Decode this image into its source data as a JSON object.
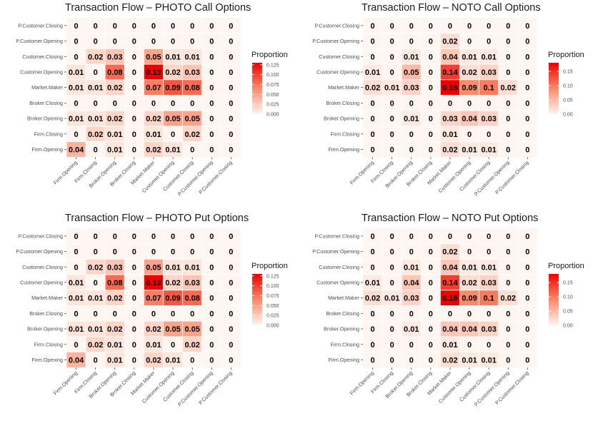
{
  "legend_title": "Proportion",
  "chart_data": [
    {
      "type": "heatmap",
      "title": "Transaction Flow – PHOTO Call Options",
      "x_categories": [
        "Firm.Opening",
        "Firm.Closing",
        "Broker.Opening",
        "Broker.Closing",
        "Market.Maker",
        "Customer.Opening",
        "Customer.Closing",
        "P.Customer.Opening",
        "P.Customer.Closing"
      ],
      "y_categories": [
        "P.Customer.Closing",
        "P.Customer.Opening",
        "Customer.Closing",
        "Customer.Opening",
        "Market.Maker",
        "Broker.Closing",
        "Broker.Opening",
        "Firm.Closing",
        "Firm.Opening"
      ],
      "values": [
        [
          0,
          0,
          0,
          0,
          0,
          0,
          0,
          0,
          0
        ],
        [
          0,
          0,
          0,
          0,
          0,
          0,
          0,
          0,
          0
        ],
        [
          0,
          0.02,
          0.03,
          0,
          0.05,
          0.01,
          0.01,
          0,
          0
        ],
        [
          0.01,
          0,
          0.08,
          0,
          0.13,
          0.02,
          0.03,
          0,
          0
        ],
        [
          0.01,
          0.01,
          0.02,
          0,
          0.07,
          0.09,
          0.08,
          0,
          0
        ],
        [
          0,
          0,
          0,
          0,
          0,
          0,
          0,
          0,
          0
        ],
        [
          0.01,
          0.01,
          0.02,
          0,
          0.02,
          0.05,
          0.05,
          0,
          0
        ],
        [
          0,
          0.02,
          0.01,
          0,
          0.01,
          0,
          0.02,
          0,
          0
        ],
        [
          0.04,
          0,
          0.01,
          0,
          0.02,
          0.01,
          0,
          0,
          0
        ]
      ],
      "legend": {
        "title": "Proportion",
        "min": 0,
        "max": 0.13,
        "ticks": [
          "0.125",
          "0.100",
          "0.075",
          "0.050",
          "0.025",
          "0.000"
        ]
      }
    },
    {
      "type": "heatmap",
      "title": "Transaction Flow – NOTO Call Options",
      "x_categories": [
        "Firm.Opening",
        "Firm.Closing",
        "Broker.Opening",
        "Broker.Closing",
        "Market.Maker",
        "Customer.Opening",
        "Customer.Closing",
        "P.Customer.Opening",
        "P.Customer.Closing"
      ],
      "y_categories": [
        "P.Customer.Closing",
        "P.Customer.Opening",
        "Customer.Closing",
        "Customer.Opening",
        "Market.Maker",
        "Broker.Closing",
        "Broker.Opening",
        "Firm.Closing",
        "Firm.Opening"
      ],
      "values": [
        [
          0,
          0,
          0,
          0,
          0,
          0,
          0,
          0,
          0
        ],
        [
          0,
          0,
          0,
          0,
          0.02,
          0,
          0,
          0,
          0
        ],
        [
          0,
          0,
          0.01,
          0,
          0.04,
          0.01,
          0.01,
          0,
          0
        ],
        [
          0.01,
          0,
          0.05,
          0,
          0.14,
          0.02,
          0.03,
          0,
          0
        ],
        [
          0.02,
          0.01,
          0.03,
          0,
          0.18,
          0.09,
          0.1,
          0.02,
          0
        ],
        [
          0,
          0,
          0,
          0,
          0,
          0,
          0,
          0,
          0
        ],
        [
          0,
          0,
          0.01,
          0,
          0.03,
          0.04,
          0.03,
          0,
          0
        ],
        [
          0,
          0,
          0,
          0,
          0.01,
          0,
          0,
          0,
          0
        ],
        [
          0,
          0,
          0,
          0,
          0.02,
          0.01,
          0.01,
          0,
          0
        ]
      ],
      "legend": {
        "title": "Proportion",
        "min": 0,
        "max": 0.18,
        "ticks": [
          "0.15",
          "0.10",
          "0.05",
          "0.00"
        ]
      }
    },
    {
      "type": "heatmap",
      "title": "Transaction Flow – PHOTO Put Options",
      "x_categories": [
        "Firm.Opening",
        "Firm.Closing",
        "Broker.Opening",
        "Broker.Closing",
        "Market.Maker",
        "Customer.Opening",
        "Customer.Closing",
        "P.Customer.Opening",
        "P.Customer.Closing"
      ],
      "y_categories": [
        "P.Customer.Closing",
        "P.Customer.Opening",
        "Customer.Closing",
        "Customer.Opening",
        "Market.Maker",
        "Broker.Closing",
        "Broker.Opening",
        "Firm.Closing",
        "Firm.Opening"
      ],
      "values": [
        [
          0,
          0,
          0,
          0,
          0,
          0,
          0,
          0,
          0
        ],
        [
          0,
          0,
          0,
          0,
          0,
          0,
          0,
          0,
          0
        ],
        [
          0,
          0.02,
          0.03,
          0,
          0.05,
          0.01,
          0.01,
          0,
          0
        ],
        [
          0.01,
          0,
          0.08,
          0,
          0.13,
          0.02,
          0.03,
          0,
          0
        ],
        [
          0.01,
          0.01,
          0.02,
          0,
          0.07,
          0.09,
          0.08,
          0,
          0
        ],
        [
          0,
          0,
          0,
          0,
          0,
          0,
          0,
          0,
          0
        ],
        [
          0.01,
          0.01,
          0.02,
          0,
          0.02,
          0.05,
          0.05,
          0,
          0
        ],
        [
          0,
          0.02,
          0.01,
          0,
          0.01,
          0,
          0.02,
          0,
          0
        ],
        [
          0.04,
          0,
          0.01,
          0,
          0.02,
          0.01,
          0,
          0,
          0
        ]
      ],
      "legend": {
        "title": "Proportion",
        "min": 0,
        "max": 0.13,
        "ticks": [
          "0.125",
          "0.100",
          "0.075",
          "0.050",
          "0.025",
          "0.000"
        ]
      }
    },
    {
      "type": "heatmap",
      "title": "Transaction Flow – NOTO Put Options",
      "x_categories": [
        "Firm.Opening",
        "Firm.Closing",
        "Broker.Opening",
        "Broker.Closing",
        "Market.Maker",
        "Customer.Opening",
        "Customer.Closing",
        "P.Customer.Opening",
        "P.Customer.Closing"
      ],
      "y_categories": [
        "P.Customer.Closing",
        "P.Customer.Opening",
        "Customer.Closing",
        "Customer.Opening",
        "Market.Maker",
        "Broker.Closing",
        "Broker.Opening",
        "Firm.Closing",
        "Firm.Opening"
      ],
      "values": [
        [
          0,
          0,
          0,
          0,
          0,
          0,
          0,
          0,
          0
        ],
        [
          0,
          0,
          0,
          0,
          0.02,
          0,
          0,
          0,
          0
        ],
        [
          0,
          0,
          0.01,
          0,
          0.04,
          0.01,
          0.01,
          0,
          0
        ],
        [
          0.01,
          0,
          0.04,
          0,
          0.14,
          0.02,
          0.03,
          0,
          0
        ],
        [
          0.02,
          0.01,
          0.03,
          0,
          0.18,
          0.09,
          0.1,
          0.02,
          0
        ],
        [
          0,
          0,
          0,
          0,
          0,
          0,
          0,
          0,
          0
        ],
        [
          0,
          0,
          0.01,
          0,
          0.04,
          0.04,
          0.03,
          0,
          0
        ],
        [
          0,
          0,
          0,
          0,
          0.01,
          0,
          0,
          0,
          0
        ],
        [
          0,
          0,
          0,
          0,
          0.02,
          0.01,
          0.01,
          0,
          0
        ]
      ],
      "legend": {
        "title": "Proportion",
        "min": 0,
        "max": 0.18,
        "ticks": [
          "0.15",
          "0.10",
          "0.05",
          "0.00"
        ]
      }
    }
  ]
}
